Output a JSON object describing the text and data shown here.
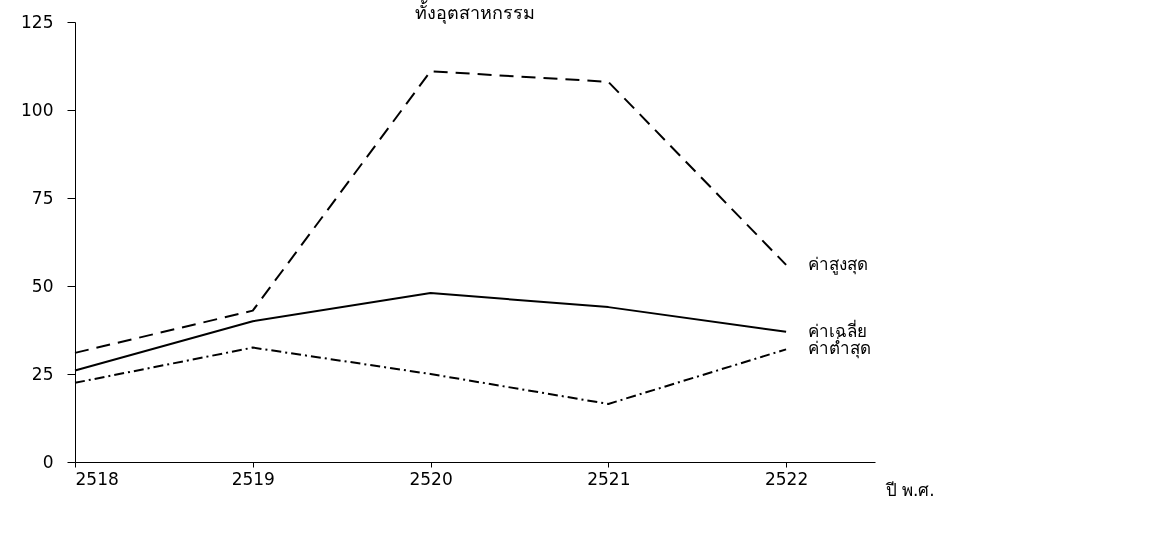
{
  "chart_data": {
    "type": "line",
    "title": "ทั้งอุตสาหกรรม",
    "xlabel": "ปี พ.ศ.",
    "x": [
      2518,
      2519,
      2520,
      2521,
      2522
    ],
    "xlim": [
      2518,
      2522.5
    ],
    "xticks": [
      2518,
      2519,
      2520,
      2521,
      2522
    ],
    "ylim": [
      0,
      125
    ],
    "yticks": [
      0,
      25,
      50,
      75,
      100,
      125
    ],
    "series": [
      {
        "name": "ค่าสูงสุด",
        "color": "#000000",
        "line_style": "dashed",
        "values": [
          31,
          43,
          111,
          108,
          56
        ]
      },
      {
        "name": "ค่าเฉลี่ย",
        "color": "#000000",
        "line_style": "solid",
        "values": [
          26,
          40,
          48,
          44,
          37
        ]
      },
      {
        "name": "ค่าต่ำสุด",
        "color": "#000000",
        "line_style": "dotted",
        "values": [
          22.5,
          32.5,
          25,
          16.5,
          32
        ]
      }
    ],
    "grid": false,
    "legend": false,
    "marker": "none"
  }
}
